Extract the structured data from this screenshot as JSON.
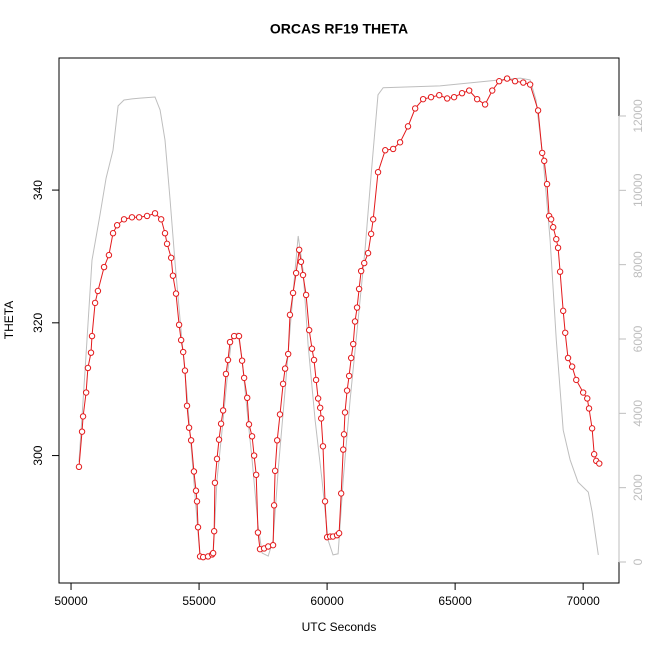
{
  "chart_data": {
    "type": "line",
    "title": "ORCAS RF19 THETA",
    "xlabel": "UTC Seconds",
    "ylabel": "THETA",
    "xlim": [
      49530,
      71400
    ],
    "xticks": [
      50000,
      55000,
      60000,
      65000,
      70000
    ],
    "ylim": [
      280.8,
      359.9
    ],
    "yticks": [
      300,
      320,
      340
    ],
    "y2lim": [
      -565,
      13560
    ],
    "y2ticks": [
      0,
      2000,
      4000,
      6000,
      8000,
      10000,
      12000
    ],
    "series": [
      {
        "color": "#e31a1c",
        "axis": "y",
        "markers": true,
        "x": [
          50310,
          50430,
          50470,
          50590,
          50660,
          50780,
          50820,
          50940,
          51050,
          51290,
          51480,
          51640,
          51800,
          52070,
          52380,
          52660,
          52970,
          53280,
          53520,
          53670,
          53750,
          53910,
          53980,
          54100,
          54220,
          54300,
          54380,
          54450,
          54530,
          54610,
          54690,
          54800,
          54880,
          54920,
          54960,
          55040,
          55160,
          55350,
          55510,
          55550,
          55590,
          55620,
          55700,
          55780,
          55860,
          55940,
          56050,
          56130,
          56210,
          56370,
          56560,
          56680,
          56760,
          56880,
          56950,
          57070,
          57150,
          57230,
          57300,
          57380,
          57540,
          57700,
          57890,
          57930,
          57970,
          58050,
          58160,
          58280,
          58360,
          58480,
          58550,
          58670,
          58790,
          58910,
          58980,
          59060,
          59180,
          59300,
          59410,
          59490,
          59570,
          59650,
          59730,
          59770,
          59840,
          59920,
          60000,
          60120,
          60230,
          60390,
          60470,
          60550,
          60630,
          60660,
          60700,
          60780,
          60860,
          60940,
          61020,
          61090,
          61170,
          61250,
          61330,
          61450,
          61600,
          61720,
          61800,
          61990,
          62270,
          62580,
          62850,
          63160,
          63440,
          63750,
          64060,
          64380,
          64690,
          64960,
          65270,
          65550,
          65860,
          66170,
          66450,
          66720,
          67030,
          67340,
          67660,
          67930,
          68240,
          68400,
          68480,
          68590,
          68670,
          68750,
          68830,
          68950,
          69020,
          69100,
          69220,
          69300,
          69410,
          69570,
          69730,
          70000,
          70160,
          70230,
          70350,
          70430,
          70510,
          70630
        ],
        "values": [
          298.3,
          303.6,
          305.9,
          309.5,
          313.2,
          315.5,
          318.0,
          323.0,
          324.8,
          328.4,
          330.2,
          333.5,
          334.7,
          335.6,
          335.9,
          335.9,
          336.1,
          336.5,
          335.6,
          333.5,
          331.9,
          329.8,
          327.1,
          324.4,
          319.7,
          317.4,
          315.6,
          312.8,
          307.5,
          304.2,
          302.3,
          297.6,
          294.7,
          293.1,
          289.2,
          284.8,
          284.7,
          284.8,
          285.1,
          285.3,
          288.6,
          295.9,
          299.5,
          302.4,
          304.8,
          306.8,
          312.3,
          314.4,
          317.1,
          318.0,
          318.0,
          314.3,
          311.7,
          308.7,
          304.7,
          302.9,
          300.0,
          297.1,
          288.4,
          285.9,
          286.0,
          286.3,
          286.5,
          292.5,
          297.7,
          302.3,
          306.2,
          310.8,
          313.1,
          315.3,
          321.2,
          324.5,
          327.5,
          331.0,
          329.2,
          327.2,
          324.2,
          318.9,
          316.1,
          314.4,
          311.4,
          308.6,
          307.2,
          305.6,
          301.4,
          293.1,
          287.7,
          287.8,
          287.8,
          288.0,
          288.3,
          294.3,
          300.9,
          303.2,
          306.5,
          309.8,
          312.0,
          314.7,
          316.8,
          320.2,
          322.3,
          325.1,
          327.8,
          329.0,
          330.5,
          333.4,
          335.6,
          342.7,
          346.0,
          346.2,
          347.2,
          349.6,
          352.3,
          353.7,
          354.0,
          354.3,
          353.8,
          354.0,
          354.6,
          355.0,
          353.7,
          352.9,
          355.0,
          356.4,
          356.8,
          356.4,
          356.2,
          355.9,
          352.0,
          345.6,
          344.4,
          340.9,
          336.1,
          335.6,
          334.4,
          332.6,
          331.3,
          327.7,
          321.8,
          318.5,
          314.7,
          313.4,
          311.4,
          309.5,
          308.6,
          307.1,
          304.1,
          300.2,
          299.2,
          298.8
        ]
      },
      {
        "color": "#bebebe",
        "axis": "y2",
        "markers": false,
        "x": [
          50310,
          50550,
          50820,
          51130,
          51370,
          51640,
          51840,
          52070,
          52380,
          52700,
          53280,
          53480,
          53670,
          53870,
          54060,
          54260,
          54530,
          54730,
          54920,
          55040,
          55550,
          55700,
          55900,
          56130,
          56290,
          56520,
          56680,
          56910,
          57070,
          57300,
          57460,
          57700,
          57890,
          58090,
          58360,
          58550,
          58750,
          58870,
          59060,
          59260,
          59530,
          59800,
          60040,
          60230,
          60430,
          60630,
          60900,
          61210,
          61480,
          61720,
          61990,
          62190,
          64410,
          66760,
          67540,
          67930,
          68160,
          68440,
          68710,
          68950,
          69220,
          69490,
          69800,
          70200,
          70350,
          70590
        ],
        "values": [
          2690,
          5170,
          8120,
          9340,
          10330,
          11080,
          12270,
          12430,
          12460,
          12480,
          12510,
          12160,
          11350,
          9740,
          8070,
          6510,
          4500,
          2750,
          1130,
          110,
          160,
          2210,
          3550,
          5170,
          6110,
          6160,
          5440,
          3820,
          2750,
          1000,
          240,
          160,
          590,
          2480,
          4630,
          6250,
          7860,
          8770,
          7860,
          5840,
          3820,
          2210,
          590,
          190,
          220,
          2210,
          4360,
          6510,
          8390,
          10410,
          12570,
          12760,
          12810,
          12970,
          13020,
          12970,
          12430,
          10820,
          8670,
          5970,
          3550,
          2750,
          2150,
          1880,
          1350,
          190
        ]
      }
    ]
  }
}
